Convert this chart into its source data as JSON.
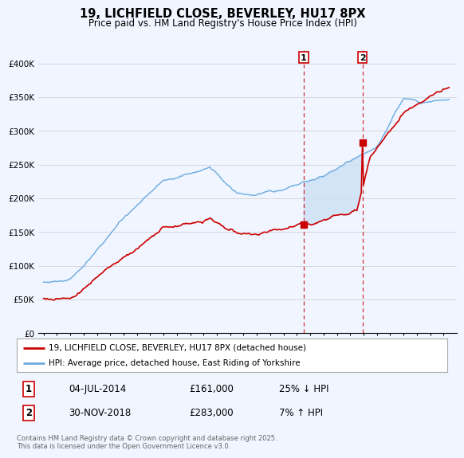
{
  "title": "19, LICHFIELD CLOSE, BEVERLEY, HU17 8PX",
  "subtitle": "Price paid vs. HM Land Registry's House Price Index (HPI)",
  "ylim": [
    0,
    420000
  ],
  "yticks": [
    0,
    50000,
    100000,
    150000,
    200000,
    250000,
    300000,
    350000,
    400000
  ],
  "hpi_color": "#6aaadf",
  "price_color": "#cc0000",
  "fill_color": "#cce0f5",
  "transaction1_x": 2014.5,
  "transaction1_y": 161000,
  "transaction2_x": 2018.917,
  "transaction2_y": 283000,
  "transaction1_date": "04-JUL-2014",
  "transaction1_price": 161000,
  "transaction1_hpi": "25% ↓ HPI",
  "transaction2_date": "30-NOV-2018",
  "transaction2_price": 283000,
  "transaction2_hpi": "7% ↑ HPI",
  "legend_line1": "19, LICHFIELD CLOSE, BEVERLEY, HU17 8PX (detached house)",
  "legend_line2": "HPI: Average price, detached house, East Riding of Yorkshire",
  "footer": "Contains HM Land Registry data © Crown copyright and database right 2025.\nThis data is licensed under the Open Government Licence v3.0.",
  "bg_color": "#f0f5ff",
  "xlim_left": 1994.6,
  "xlim_right": 2026.0
}
